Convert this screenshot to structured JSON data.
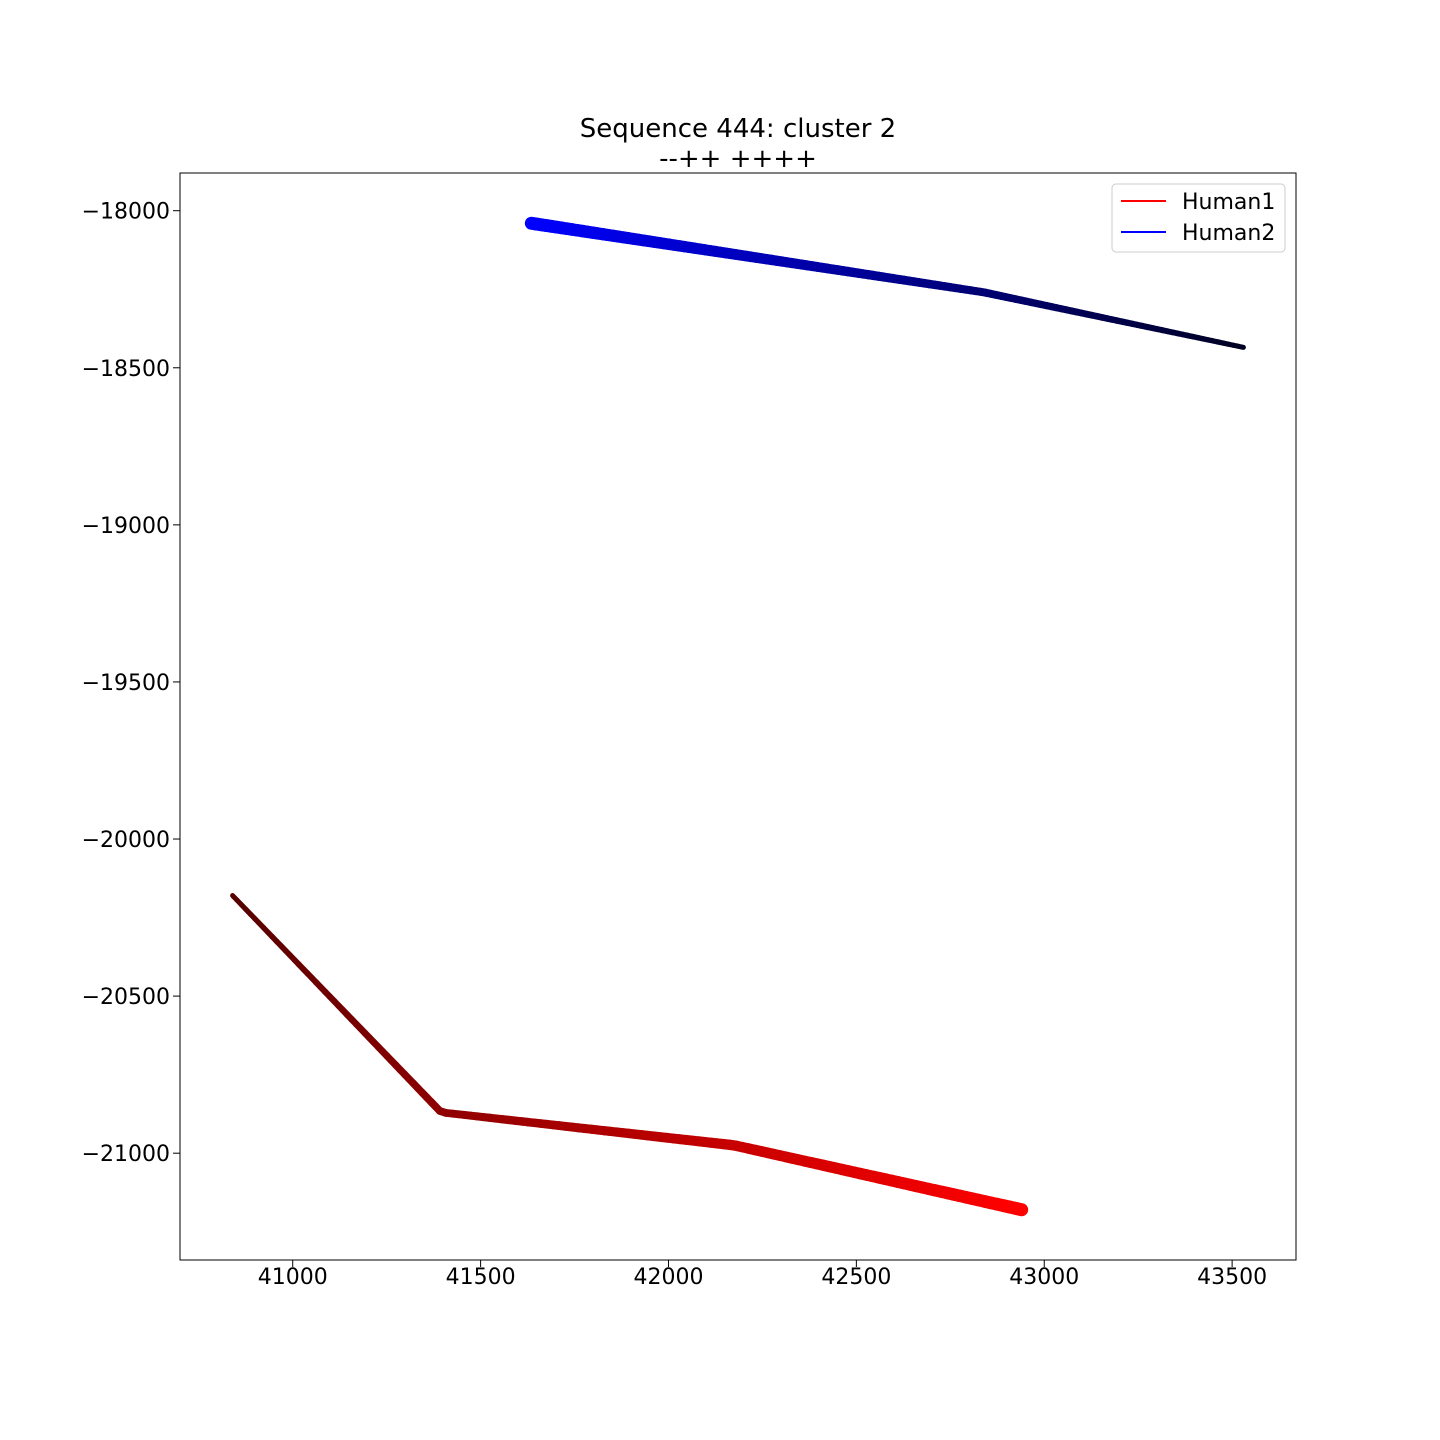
{
  "chart_data": {
    "type": "line",
    "title": "Sequence 444: cluster 2",
    "subtitle": "--++ ++++",
    "xlabel": "",
    "ylabel": "",
    "xlim": [
      40700,
      43670
    ],
    "ylim": [
      -21340,
      -17880
    ],
    "x_ticks": [
      41000,
      41500,
      42000,
      42500,
      43000,
      43500
    ],
    "y_ticks": [
      -18000,
      -18500,
      -19000,
      -19500,
      -20000,
      -20500,
      -21000
    ],
    "x_tick_labels": [
      "41000",
      "41500",
      "42000",
      "42500",
      "43000",
      "43500"
    ],
    "y_tick_labels": [
      "−18000",
      "−18500",
      "−19000",
      "−19500",
      "−20000",
      "−20500",
      "−21000"
    ],
    "grid": false,
    "legend_position": "top-right",
    "series": [
      {
        "name": "Human1",
        "color": "#ff0000",
        "start_color": "#550000",
        "end_color": "#ff0000",
        "x": [
          40840,
          41395,
          42175,
          42940
        ],
        "y": [
          -20180,
          -20870,
          -20975,
          -21180
        ]
      },
      {
        "name": "Human2",
        "color": "#0000ff",
        "start_color": "#0000ff",
        "end_color": "#000022",
        "x": [
          41635,
          42840,
          43530
        ],
        "y": [
          -18040,
          -18260,
          -18435
        ]
      }
    ]
  }
}
